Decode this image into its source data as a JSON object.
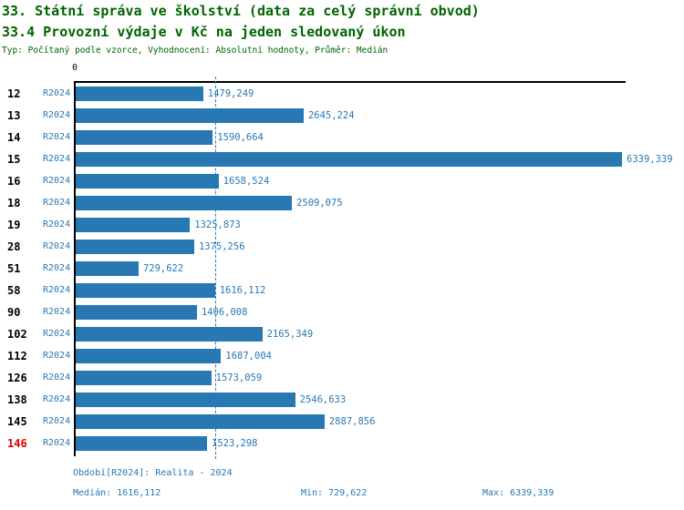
{
  "header": {
    "title_line1": "33. Státní správa ve školství (data za celý správní obvod)",
    "title_line2": "33.4 Provozní výdaje v Kč na jeden sledovaný úkon",
    "subtitle": "Typ: Počítaný podle vzorce, Vyhodnocení: Absolutní hodnoty, Průměr: Medián"
  },
  "colors": {
    "title_green": "#006400",
    "bar_blue": "#2878b4",
    "highlight_red": "#dd0000",
    "axis_black": "#000000"
  },
  "chart_data": {
    "type": "bar",
    "orientation": "horizontal",
    "title": "33.4 Provozní výdaje v Kč na jeden sledovaný úkon",
    "axis_origin_label": "0",
    "xlim": [
      0,
      6339.339
    ],
    "grid": false,
    "legend_position": "none",
    "median": 1616.112,
    "min": 729.622,
    "max_value": 6339.339,
    "highlighted_category": "146",
    "categories": [
      "12",
      "13",
      "14",
      "15",
      "16",
      "18",
      "19",
      "28",
      "51",
      "58",
      "90",
      "102",
      "112",
      "126",
      "138",
      "145",
      "146"
    ],
    "series": [
      {
        "name": "R2024",
        "values": [
          1479.249,
          2645.224,
          1590.664,
          6339.339,
          1658.524,
          2509.075,
          1325.873,
          1375.256,
          729.622,
          1616.112,
          1406.008,
          2165.349,
          1687.004,
          1573.059,
          2546.633,
          2887.856,
          1523.298
        ]
      }
    ],
    "rows": [
      {
        "id": "12",
        "period": "R2024",
        "value": 1479.249,
        "value_label": "1479,249",
        "highlight": false
      },
      {
        "id": "13",
        "period": "R2024",
        "value": 2645.224,
        "value_label": "2645,224",
        "highlight": false
      },
      {
        "id": "14",
        "period": "R2024",
        "value": 1590.664,
        "value_label": "1590,664",
        "highlight": false
      },
      {
        "id": "15",
        "period": "R2024",
        "value": 6339.339,
        "value_label": "6339,339",
        "highlight": false
      },
      {
        "id": "16",
        "period": "R2024",
        "value": 1658.524,
        "value_label": "1658,524",
        "highlight": false
      },
      {
        "id": "18",
        "period": "R2024",
        "value": 2509.075,
        "value_label": "2509,075",
        "highlight": false
      },
      {
        "id": "19",
        "period": "R2024",
        "value": 1325.873,
        "value_label": "1325,873",
        "highlight": false
      },
      {
        "id": "28",
        "period": "R2024",
        "value": 1375.256,
        "value_label": "1375,256",
        "highlight": false
      },
      {
        "id": "51",
        "period": "R2024",
        "value": 729.622,
        "value_label": "729,622",
        "highlight": false
      },
      {
        "id": "58",
        "period": "R2024",
        "value": 1616.112,
        "value_label": "1616,112",
        "highlight": false
      },
      {
        "id": "90",
        "period": "R2024",
        "value": 1406.008,
        "value_label": "1406,008",
        "highlight": false
      },
      {
        "id": "102",
        "period": "R2024",
        "value": 2165.349,
        "value_label": "2165,349",
        "highlight": false
      },
      {
        "id": "112",
        "period": "R2024",
        "value": 1687.004,
        "value_label": "1687,004",
        "highlight": false
      },
      {
        "id": "126",
        "period": "R2024",
        "value": 1573.059,
        "value_label": "1573,059",
        "highlight": false
      },
      {
        "id": "138",
        "period": "R2024",
        "value": 2546.633,
        "value_label": "2546,633",
        "highlight": false
      },
      {
        "id": "145",
        "period": "R2024",
        "value": 2887.856,
        "value_label": "2887,856",
        "highlight": false
      },
      {
        "id": "146",
        "period": "R2024",
        "value": 1523.298,
        "value_label": "1523,298",
        "highlight": true
      }
    ]
  },
  "footer": {
    "period_line": "Období[R2024]: Realita - 2024",
    "median_label": "Medián: 1616,112",
    "min_label": "Min: 729,622",
    "max_label": "Max: 6339,339"
  }
}
